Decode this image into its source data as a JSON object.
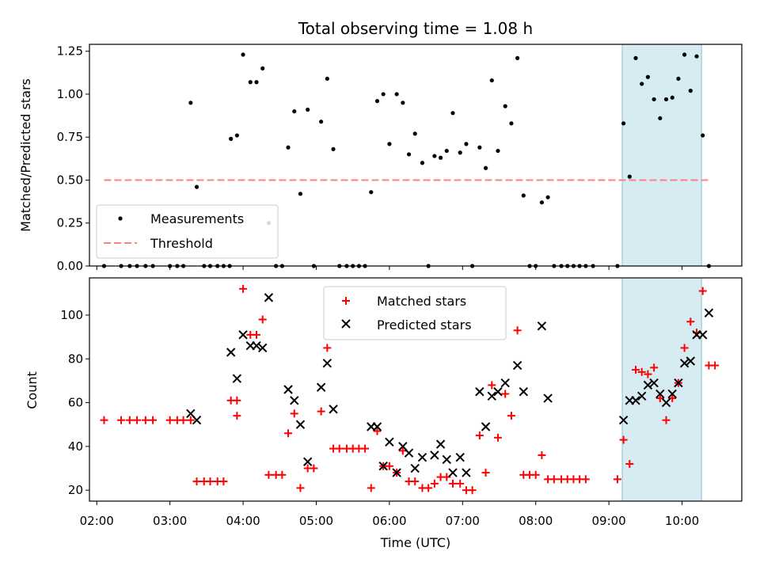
{
  "chart_data": [
    {
      "type": "scatter",
      "title": "Total observing time = 1.08 h",
      "xlabel": "",
      "ylabel": "Matched/Predicted stars",
      "xlim": [
        "01:54",
        "10:49"
      ],
      "ylim": [
        0.0,
        1.29
      ],
      "yticks": [
        0.0,
        0.25,
        0.5,
        0.75,
        1.0,
        1.25
      ],
      "ytick_labels": [
        "0.00",
        "0.25",
        "0.50",
        "0.75",
        "1.00",
        "1.25"
      ],
      "highlight_span": {
        "x": [
          "09:11",
          "10:16"
        ],
        "color": "#add8e6"
      },
      "legend": {
        "placement": "lower-left",
        "entries": [
          "Measurements",
          "Threshold"
        ]
      },
      "series": [
        {
          "name": "Measurements",
          "kind": "points",
          "color": "#000000",
          "points": [
            [
              "02:06",
              0
            ],
            [
              "02:20",
              0
            ],
            [
              "02:27",
              0
            ],
            [
              "02:33",
              0
            ],
            [
              "02:40",
              0
            ],
            [
              "02:46",
              0
            ],
            [
              "03:00",
              0
            ],
            [
              "03:06",
              0
            ],
            [
              "03:11",
              0
            ],
            [
              "03:17",
              0.95
            ],
            [
              "03:22",
              0.46
            ],
            [
              "03:28",
              0
            ],
            [
              "03:33",
              0
            ],
            [
              "03:39",
              0
            ],
            [
              "03:44",
              0
            ],
            [
              "03:49",
              0
            ],
            [
              "03:55",
              0.76
            ],
            [
              "03:50",
              0.74
            ],
            [
              "04:00",
              1.23
            ],
            [
              "04:06",
              1.07
            ],
            [
              "04:11",
              1.07
            ],
            [
              "04:16",
              1.15
            ],
            [
              "04:21",
              0.25
            ],
            [
              "04:27",
              0
            ],
            [
              "04:32",
              0
            ],
            [
              "04:37",
              0.69
            ],
            [
              "04:42",
              0.9
            ],
            [
              "04:47",
              0.42
            ],
            [
              "04:53",
              0.91
            ],
            [
              "04:58",
              0
            ],
            [
              "05:04",
              0.84
            ],
            [
              "05:09",
              1.09
            ],
            [
              "05:14",
              0.68
            ],
            [
              "05:19",
              0
            ],
            [
              "05:25",
              0
            ],
            [
              "05:30",
              0
            ],
            [
              "05:35",
              0
            ],
            [
              "05:40",
              0
            ],
            [
              "05:45",
              0.43
            ],
            [
              "05:50",
              0.96
            ],
            [
              "05:55",
              1.0
            ],
            [
              "06:00",
              0.71
            ],
            [
              "06:06",
              1.0
            ],
            [
              "06:11",
              0.95
            ],
            [
              "06:16",
              0.65
            ],
            [
              "06:21",
              0.77
            ],
            [
              "06:27",
              0.6
            ],
            [
              "06:32",
              0
            ],
            [
              "06:37",
              0.64
            ],
            [
              "06:42",
              0.63
            ],
            [
              "06:47",
              0.67
            ],
            [
              "06:52",
              0.89
            ],
            [
              "06:58",
              0.66
            ],
            [
              "07:03",
              0.71
            ],
            [
              "07:08",
              0
            ],
            [
              "07:14",
              0.69
            ],
            [
              "07:19",
              0.57
            ],
            [
              "07:24",
              1.08
            ],
            [
              "07:29",
              0.67
            ],
            [
              "07:35",
              0.93
            ],
            [
              "07:40",
              0.83
            ],
            [
              "07:45",
              1.21
            ],
            [
              "07:50",
              0.41
            ],
            [
              "07:55",
              0
            ],
            [
              "08:00",
              0
            ],
            [
              "08:05",
              0.37
            ],
            [
              "08:10",
              0.4
            ],
            [
              "08:15",
              0
            ],
            [
              "08:21",
              0
            ],
            [
              "08:26",
              0
            ],
            [
              "08:31",
              0
            ],
            [
              "08:36",
              0
            ],
            [
              "08:41",
              0
            ],
            [
              "08:47",
              0
            ],
            [
              "09:07",
              0
            ],
            [
              "09:12",
              0.83
            ],
            [
              "09:17",
              0.52
            ],
            [
              "09:22",
              1.21
            ],
            [
              "09:27",
              1.06
            ],
            [
              "09:32",
              1.1
            ],
            [
              "09:37",
              0.97
            ],
            [
              "09:42",
              0.86
            ],
            [
              "09:47",
              0.97
            ],
            [
              "09:52",
              0.98
            ],
            [
              "09:57",
              1.09
            ],
            [
              "10:02",
              1.23
            ],
            [
              "10:07",
              1.02
            ],
            [
              "10:12",
              1.22
            ],
            [
              "10:17",
              0.76
            ],
            [
              "10:22",
              0
            ]
          ]
        },
        {
          "name": "Threshold",
          "kind": "dashed-line",
          "color": "#ff8080",
          "points": [
            [
              "02:06",
              0.5
            ],
            [
              "10:22",
              0.5
            ]
          ]
        }
      ]
    },
    {
      "type": "scatter",
      "title": "",
      "xlabel": "Time (UTC)",
      "ylabel": "Count",
      "xlim": [
        "01:54",
        "10:49"
      ],
      "ylim": [
        15,
        117
      ],
      "yticks": [
        20,
        40,
        60,
        80,
        100
      ],
      "ytick_labels": [
        "20",
        "40",
        "60",
        "80",
        "100"
      ],
      "xticks": [
        "02:00",
        "03:00",
        "04:00",
        "05:00",
        "06:00",
        "07:00",
        "08:00",
        "09:00",
        "10:00"
      ],
      "highlight_span": {
        "x": [
          "09:11",
          "10:16"
        ],
        "color": "#add8e6"
      },
      "legend": {
        "placement": "upper-center",
        "entries": [
          "Matched stars",
          "Predicted stars"
        ]
      },
      "series": [
        {
          "name": "Matched stars",
          "marker": "plus",
          "color": "#ff0000",
          "points": [
            [
              "02:06",
              52
            ],
            [
              "02:20",
              52
            ],
            [
              "02:27",
              52
            ],
            [
              "02:33",
              52
            ],
            [
              "02:40",
              52
            ],
            [
              "02:46",
              52
            ],
            [
              "03:00",
              52
            ],
            [
              "03:06",
              52
            ],
            [
              "03:11",
              52
            ],
            [
              "03:17",
              52
            ],
            [
              "03:22",
              24
            ],
            [
              "03:28",
              24
            ],
            [
              "03:33",
              24
            ],
            [
              "03:39",
              24
            ],
            [
              "03:44",
              24
            ],
            [
              "03:50",
              61
            ],
            [
              "03:55",
              61
            ],
            [
              "03:55",
              54
            ],
            [
              "04:00",
              112
            ],
            [
              "04:06",
              91
            ],
            [
              "04:11",
              91
            ],
            [
              "04:16",
              98
            ],
            [
              "04:21",
              27
            ],
            [
              "04:27",
              27
            ],
            [
              "04:32",
              27
            ],
            [
              "04:37",
              46
            ],
            [
              "04:42",
              55
            ],
            [
              "04:47",
              21
            ],
            [
              "04:53",
              30
            ],
            [
              "04:58",
              30
            ],
            [
              "05:04",
              56
            ],
            [
              "05:09",
              85
            ],
            [
              "05:14",
              39
            ],
            [
              "05:19",
              39
            ],
            [
              "05:25",
              39
            ],
            [
              "05:30",
              39
            ],
            [
              "05:35",
              39
            ],
            [
              "05:40",
              39
            ],
            [
              "05:45",
              21
            ],
            [
              "05:50",
              47
            ],
            [
              "05:55",
              31
            ],
            [
              "06:00",
              31
            ],
            [
              "06:06",
              28
            ],
            [
              "06:11",
              38
            ],
            [
              "06:16",
              24
            ],
            [
              "06:21",
              24
            ],
            [
              "06:27",
              21
            ],
            [
              "06:32",
              21
            ],
            [
              "06:37",
              23
            ],
            [
              "06:42",
              26
            ],
            [
              "06:47",
              26
            ],
            [
              "06:52",
              23
            ],
            [
              "06:58",
              23
            ],
            [
              "07:03",
              20
            ],
            [
              "07:08",
              20
            ],
            [
              "07:14",
              45
            ],
            [
              "07:19",
              28
            ],
            [
              "07:24",
              68
            ],
            [
              "07:29",
              44
            ],
            [
              "07:35",
              64
            ],
            [
              "07:40",
              54
            ],
            [
              "07:45",
              93
            ],
            [
              "07:50",
              27
            ],
            [
              "07:55",
              27
            ],
            [
              "08:00",
              27
            ],
            [
              "08:05",
              36
            ],
            [
              "08:10",
              25
            ],
            [
              "08:15",
              25
            ],
            [
              "08:21",
              25
            ],
            [
              "08:26",
              25
            ],
            [
              "08:31",
              25
            ],
            [
              "08:36",
              25
            ],
            [
              "08:41",
              25
            ],
            [
              "09:07",
              25
            ],
            [
              "09:12",
              43
            ],
            [
              "09:17",
              32
            ],
            [
              "09:22",
              75
            ],
            [
              "09:27",
              74
            ],
            [
              "09:32",
              73
            ],
            [
              "09:37",
              76
            ],
            [
              "09:42",
              62
            ],
            [
              "09:47",
              52
            ],
            [
              "09:52",
              62
            ],
            [
              "09:57",
              69
            ],
            [
              "10:02",
              85
            ],
            [
              "10:07",
              97
            ],
            [
              "10:12",
              92
            ],
            [
              "10:17",
              111
            ],
            [
              "10:22",
              77
            ],
            [
              "10:27",
              77
            ]
          ]
        },
        {
          "name": "Predicted stars",
          "marker": "x",
          "color": "#000000",
          "points": [
            [
              "03:17",
              55
            ],
            [
              "03:22",
              52
            ],
            [
              "03:50",
              83
            ],
            [
              "03:55",
              71
            ],
            [
              "04:00",
              91
            ],
            [
              "04:06",
              86
            ],
            [
              "04:11",
              86
            ],
            [
              "04:16",
              85
            ],
            [
              "04:21",
              108
            ],
            [
              "04:37",
              66
            ],
            [
              "04:42",
              61
            ],
            [
              "04:47",
              50
            ],
            [
              "04:53",
              33
            ],
            [
              "05:04",
              67
            ],
            [
              "05:09",
              78
            ],
            [
              "05:14",
              57
            ],
            [
              "05:45",
              49
            ],
            [
              "05:50",
              49
            ],
            [
              "05:55",
              31
            ],
            [
              "06:00",
              42
            ],
            [
              "06:06",
              28
            ],
            [
              "06:11",
              40
            ],
            [
              "06:16",
              37
            ],
            [
              "06:21",
              30
            ],
            [
              "06:27",
              35
            ],
            [
              "06:37",
              36
            ],
            [
              "06:42",
              41
            ],
            [
              "06:47",
              34
            ],
            [
              "06:52",
              28
            ],
            [
              "06:58",
              35
            ],
            [
              "07:03",
              28
            ],
            [
              "07:14",
              65
            ],
            [
              "07:19",
              49
            ],
            [
              "07:24",
              63
            ],
            [
              "07:29",
              65
            ],
            [
              "07:35",
              69
            ],
            [
              "07:45",
              77
            ],
            [
              "07:50",
              65
            ],
            [
              "08:05",
              95
            ],
            [
              "08:10",
              62
            ],
            [
              "09:12",
              52
            ],
            [
              "09:17",
              61
            ],
            [
              "09:22",
              61
            ],
            [
              "09:27",
              63
            ],
            [
              "09:32",
              68
            ],
            [
              "09:37",
              69
            ],
            [
              "09:42",
              64
            ],
            [
              "09:47",
              60
            ],
            [
              "09:52",
              64
            ],
            [
              "09:57",
              69
            ],
            [
              "10:02",
              78
            ],
            [
              "10:07",
              79
            ],
            [
              "10:12",
              91
            ],
            [
              "10:17",
              91
            ],
            [
              "10:22",
              101
            ]
          ]
        }
      ]
    }
  ]
}
